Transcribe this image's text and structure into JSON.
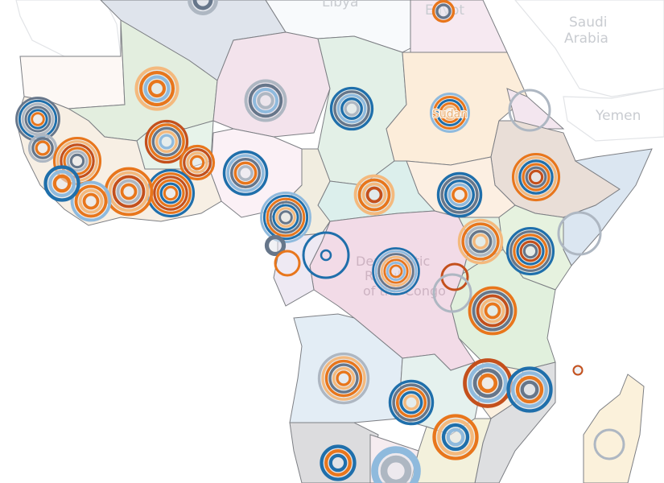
{
  "map": {
    "labels": {
      "libya": "Libya",
      "egypt": "Egypt",
      "saudi_arabia_1": "Saudi",
      "saudi_arabia_2": "Arabia",
      "yemen": "Yemen",
      "sudan": "Sudan",
      "drc_1": "Democratic",
      "drc_2": "Republic",
      "drc_3": "of the Congo"
    },
    "palette": {
      "blue": "#1f6fab",
      "light_blue": "#8fbadd",
      "orange": "#e8761c",
      "light_orange": "#f4b97d",
      "dark_orange": "#c4501c",
      "gray": "#66768a",
      "light_gray": "#aeb7c2"
    }
  }
}
